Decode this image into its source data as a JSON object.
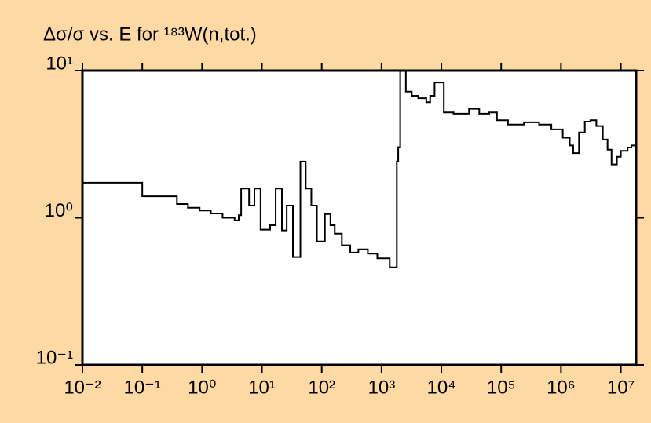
{
  "chart_data": {
    "type": "step",
    "title": "Δσ/σ vs. E for ¹⁸³W(n,tot.)",
    "x": [
      0.01,
      0.1,
      0.38,
      0.58,
      0.91,
      1.4,
      2.2,
      3.5,
      4.1,
      4.5,
      6.1,
      7.5,
      9.5,
      13.7,
      17,
      21.6,
      26,
      33,
      44,
      54,
      67,
      83,
      113,
      140,
      165,
      217,
      300,
      410,
      590,
      850,
      1370,
      1800,
      1900,
      2050,
      2550,
      3200,
      4100,
      5600,
      6500,
      7700,
      11000,
      16000,
      25000,
      29000,
      43000,
      63000,
      85000,
      130000,
      240000,
      430000,
      690000,
      1070000,
      1400000,
      1600000,
      2000000,
      2500000,
      3100000,
      3900000,
      5000000,
      6000000,
      7000000,
      8600000,
      10000000,
      13000000,
      15000000,
      18000000
    ],
    "values": [
      1.73,
      1.4,
      1.24,
      1.17,
      1.12,
      1.07,
      1.0,
      0.96,
      1.04,
      1.58,
      1.21,
      1.58,
      0.83,
      0.89,
      1.58,
      0.82,
      1.21,
      0.54,
      2.41,
      1.58,
      1.21,
      0.69,
      1.06,
      0.89,
      0.78,
      0.65,
      0.58,
      0.61,
      0.57,
      0.53,
      0.46,
      2.41,
      3.02,
      10,
      7.2,
      6.75,
      6.5,
      6.1,
      6.75,
      8.3,
      5.2,
      5.1,
      5.1,
      5.5,
      5.1,
      5.2,
      4.6,
      4.3,
      4.45,
      4.3,
      3.99,
      3.5,
      3.1,
      2.75,
      3.8,
      4.5,
      4.6,
      4.2,
      3.4,
      2.9,
      2.3,
      2.6,
      2.85,
      3.0,
      3.1,
      3.1
    ],
    "color": "#000000",
    "xlog": true,
    "ylog": true,
    "xlim": [
      0.01,
      18000000
    ],
    "ylim": [
      0.1,
      10
    ],
    "xticks": [
      {
        "value": 0.01,
        "label": "10⁻²"
      },
      {
        "value": 0.1,
        "label": "10⁻¹"
      },
      {
        "value": 1,
        "label": "10⁰"
      },
      {
        "value": 10,
        "label": "10¹"
      },
      {
        "value": 100,
        "label": "10²"
      },
      {
        "value": 1000,
        "label": "10³"
      },
      {
        "value": 10000,
        "label": "10⁴"
      },
      {
        "value": 100000,
        "label": "10⁵"
      },
      {
        "value": 1000000,
        "label": "10⁶"
      },
      {
        "value": 10000000,
        "label": "10⁷"
      }
    ],
    "yticks": [
      {
        "value": 0.1,
        "label": "10⁻¹"
      },
      {
        "value": 1,
        "label": "10⁰"
      },
      {
        "value": 10,
        "label": "10¹"
      }
    ]
  }
}
